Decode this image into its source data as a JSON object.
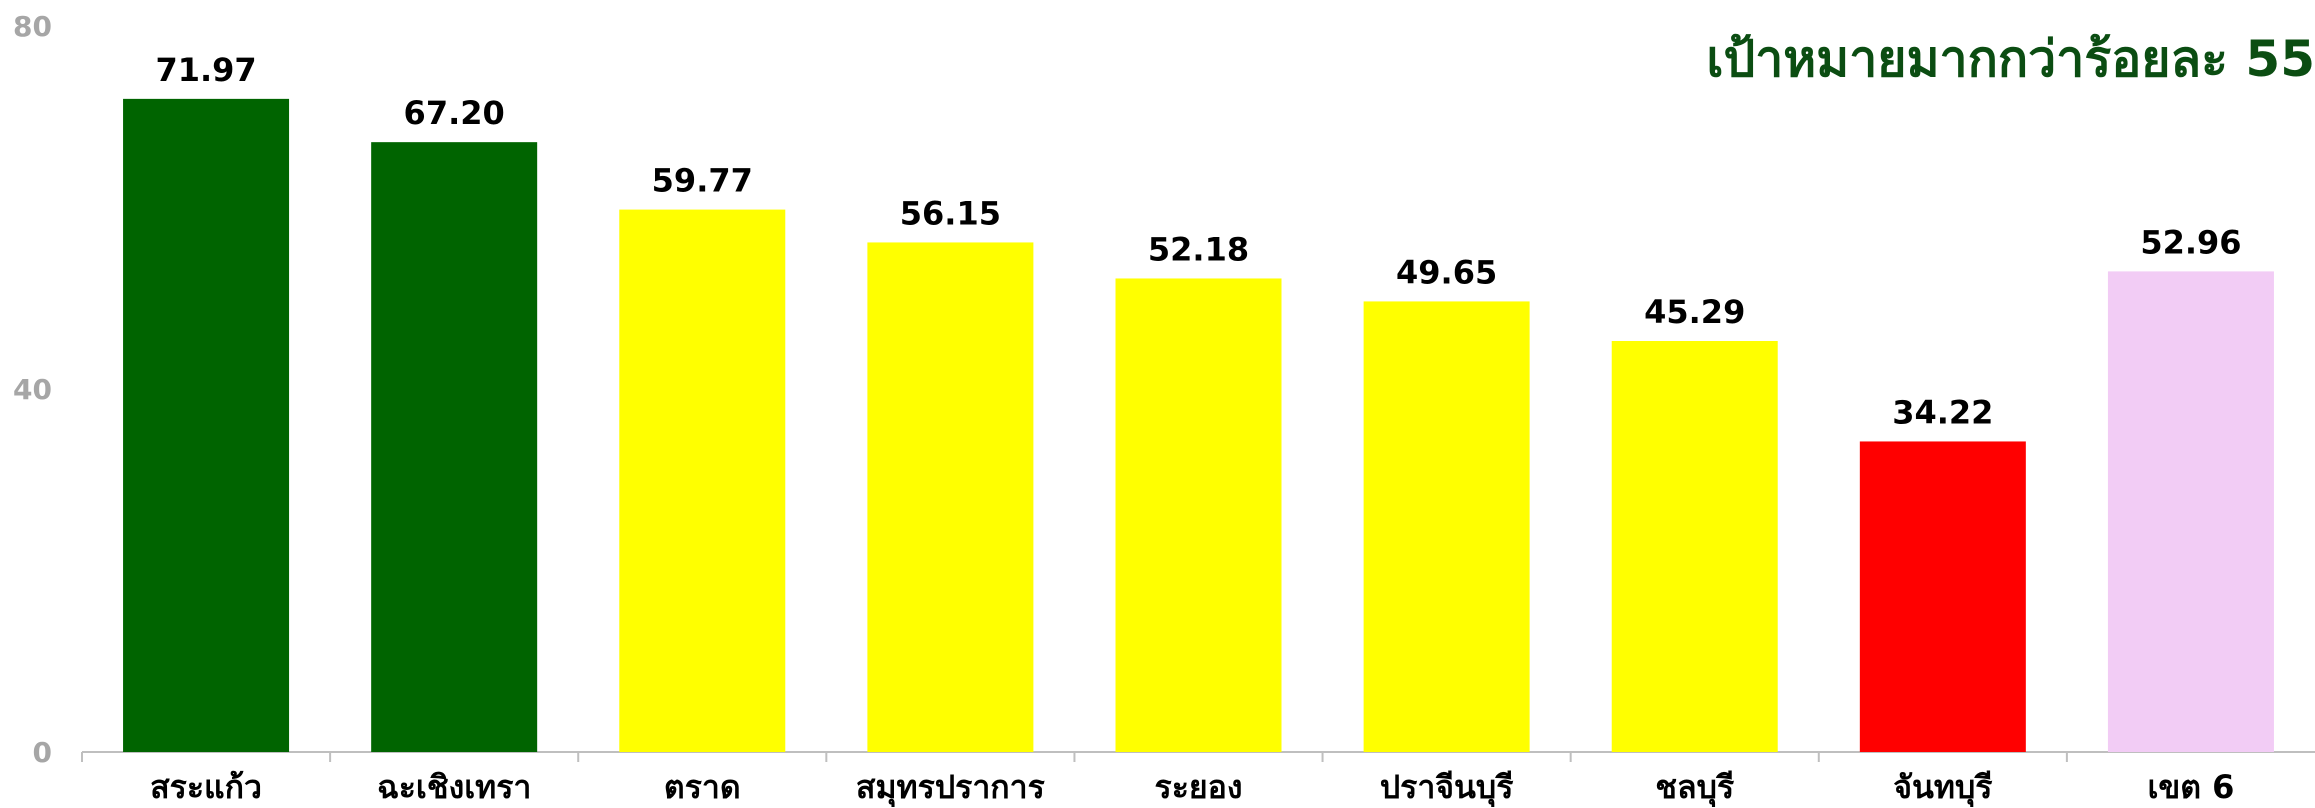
{
  "chart_data": {
    "type": "bar",
    "title": "เป้าหมายมากกว่าร้อยละ 55",
    "xlabel": "",
    "ylabel": "",
    "ylim": [
      0,
      80
    ],
    "yticks": [
      "0",
      "40",
      "80"
    ],
    "grid": false,
    "legend": "none",
    "categories": [
      "สระแก้ว",
      "ฉะเชิงเทรา",
      "ตราด",
      "สมุทรปราการ",
      "ระยอง",
      "ปราจีนบุรี",
      "ชลบุรี",
      "จันทบุรี",
      "เขต 6"
    ],
    "values": [
      71.97,
      67.2,
      59.77,
      56.15,
      52.18,
      49.65,
      45.29,
      34.22,
      52.96
    ],
    "value_labels": [
      "71.97",
      "67.20",
      "59.77",
      "56.15",
      "52.18",
      "49.65",
      "45.29",
      "34.22",
      "52.96"
    ],
    "bar_colors": [
      "#006400",
      "#006400",
      "#ffff00",
      "#ffff00",
      "#ffff00",
      "#ffff00",
      "#ffff00",
      "#ff0000",
      "#f2ccf5"
    ],
    "colors": {
      "title": "#0b4d12",
      "axis": "#bfbfbf",
      "tick_text": "#a6a6a6",
      "label_text": "#000000"
    }
  }
}
